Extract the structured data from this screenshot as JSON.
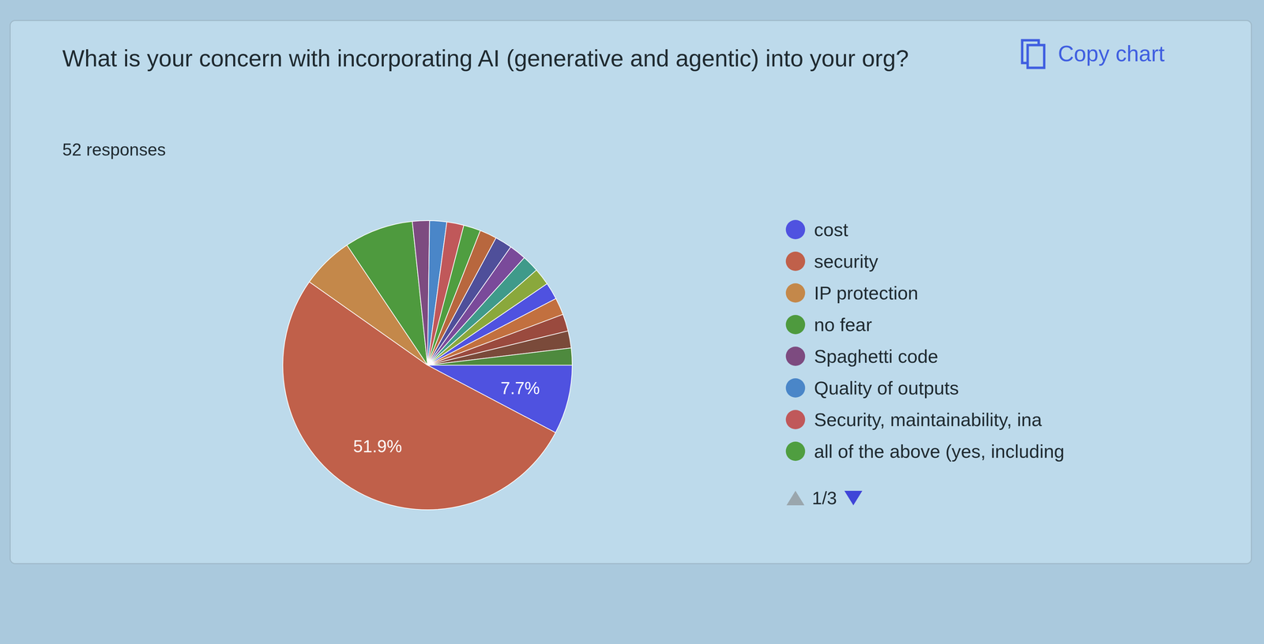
{
  "chart_data": {
    "type": "pie",
    "title": "What is your concern with incorporating AI (generative and agentic) into your org?",
    "subtitle": "52 responses",
    "annotations": [
      "Copy chart",
      "1/3"
    ],
    "categories": [
      "cost",
      "security",
      "IP protection",
      "no fear",
      "Spaghetti code",
      "Quality of outputs",
      "Security, maintainability, ina",
      "all of the above (yes, including",
      null,
      null,
      null,
      null,
      null,
      null,
      null,
      null,
      null,
      null
    ],
    "values": [
      7.7,
      51.9,
      5.8,
      7.7,
      1.9,
      1.9,
      1.9,
      1.9,
      1.9,
      1.9,
      1.9,
      1.9,
      1.9,
      1.9,
      1.9,
      1.9,
      1.9,
      1.9
    ],
    "value_labels": [
      "7.7%",
      "51.9%",
      null,
      null,
      null,
      null,
      null,
      null,
      null,
      null,
      null,
      null,
      null,
      null,
      null,
      null,
      null,
      null
    ],
    "colors": [
      "#4f52e0",
      "#c0604a",
      "#c4884a",
      "#4e9a3e",
      "#7d4b80",
      "#4a86c8",
      "#c0585a",
      "#4f9e40",
      "#b8673e",
      "#4f4f9a",
      "#7a4a9a",
      "#3f9a8a",
      "#8aa83c",
      "#4f52e0",
      "#c2703f",
      "#9a4a3e",
      "#7a4a3a",
      "#4e8a3e"
    ],
    "data_labels": true,
    "legend": "right"
  }
}
